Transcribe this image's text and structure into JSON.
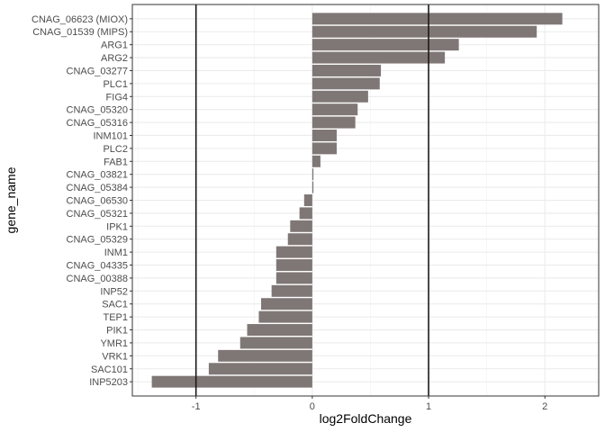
{
  "chart_data": {
    "type": "bar",
    "orientation": "horizontal",
    "xlabel": "log2FoldChange",
    "ylabel": "gene_name",
    "xlim": [
      -1.38,
      2.28
    ],
    "x_ticks": [
      -1,
      0,
      1,
      2
    ],
    "x_tick_labels": [
      "-1",
      "0",
      "1",
      "2"
    ],
    "reference_lines": [
      -1,
      1
    ],
    "grid": true,
    "bar_color": "#7f7776",
    "reference_line_color": "#1a1a1a",
    "categories": [
      "CNAG_06623 (MIOX)",
      "CNAG_01539 (MIPS)",
      "ARG1",
      "ARG2",
      "CNAG_03277",
      "PLC1",
      "FIG4",
      "CNAG_05320",
      "CNAG_05316",
      "INM101",
      "PLC2",
      "FAB1",
      "CNAG_03821",
      "CNAG_05384",
      "CNAG_06530",
      "CNAG_05321",
      "IPK1",
      "CNAG_05329",
      "INM1",
      "CNAG_04335",
      "CNAG_00388",
      "INP52",
      "SAC1",
      "TEP1",
      "PIK1",
      "YMR1",
      "VRK1",
      "SAC101",
      "INP5203"
    ],
    "values": [
      2.15,
      1.93,
      1.26,
      1.14,
      0.59,
      0.58,
      0.48,
      0.39,
      0.37,
      0.21,
      0.21,
      0.07,
      0.01,
      0.01,
      -0.07,
      -0.11,
      -0.19,
      -0.21,
      -0.31,
      -0.31,
      -0.31,
      -0.35,
      -0.44,
      -0.46,
      -0.56,
      -0.62,
      -0.81,
      -0.89,
      -1.38
    ]
  }
}
